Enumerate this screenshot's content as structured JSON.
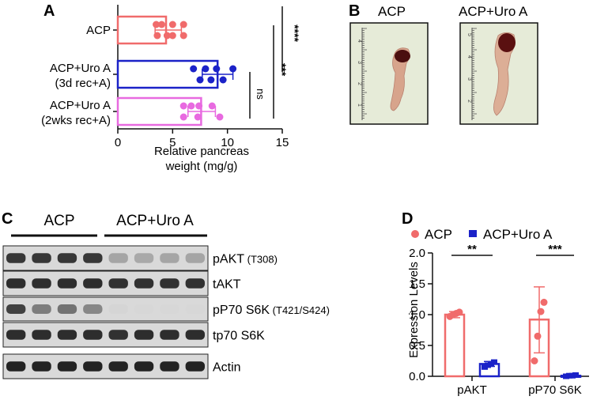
{
  "panels": {
    "A": {
      "letter": "A",
      "xlabel_line1": "Relative pancreas",
      "xlabel_line2": "weight (mg/g)",
      "xticks": [
        "0",
        "5",
        "10",
        "15"
      ],
      "groups": [
        {
          "label_line1": "ACP",
          "label_line2": "",
          "color": "#f06b6b"
        },
        {
          "label_line1": "ACP+Uro A",
          "label_line2": "(3d rec+A)",
          "color": "#1b22c8"
        },
        {
          "label_line1": "ACP+Uro A",
          "label_line2": "(2wks rec+A)",
          "color": "#e86ae0"
        }
      ],
      "sig": {
        "ns": "ns",
        "four": "****",
        "three": "***"
      }
    },
    "B": {
      "letter": "B",
      "left_label": "ACP",
      "right_label": "ACP+Uro A"
    },
    "C": {
      "letter": "C",
      "group1": "ACP",
      "group2": "ACP+Uro A",
      "bands": [
        {
          "name": "pAKT",
          "site": "(T308)"
        },
        {
          "name": "tAKT",
          "site": ""
        },
        {
          "name": "pP70 S6K",
          "site": "(T421/S424)"
        },
        {
          "name": "tp70 S6K",
          "site": ""
        },
        {
          "name": "Actin",
          "site": ""
        }
      ]
    },
    "D": {
      "letter": "D",
      "ylabel": "Expression Levels",
      "yticks": [
        "0.0",
        "0.5",
        "1.0",
        "1.5",
        "2.0"
      ],
      "categories": [
        "pAKT",
        "pP70 S6K"
      ],
      "legend": [
        {
          "label": "ACP",
          "color": "#f06b6b"
        },
        {
          "label": "ACP+Uro A",
          "color": "#1b22c8"
        }
      ],
      "sig": [
        "**",
        "***"
      ]
    }
  },
  "chart_data": [
    {
      "type": "bar",
      "orientation": "horizontal",
      "categories": [
        "ACP",
        "ACP+Uro A (3d rec+A)",
        "ACP+Uro A (2wks rec+A)"
      ],
      "values": [
        4.4,
        9.1,
        7.6
      ],
      "error": [
        [
          3.4,
          5.8
        ],
        [
          7.7,
          10.5
        ],
        [
          6.4,
          8.9
        ]
      ],
      "points": [
        [
          3.5,
          4.0,
          5.0,
          6.0,
          3.6,
          4.5,
          5.0,
          6.0
        ],
        [
          6.9,
          8.0,
          9.0,
          10.5,
          9.6,
          7.5,
          8.5
        ],
        [
          6.0,
          6.7,
          7.4,
          8.6,
          6.0,
          7.3,
          9.3
        ]
      ],
      "xlabel": "Relative pancreas weight (mg/g)",
      "xlim": [
        0,
        15
      ],
      "annotations": [
        "ns",
        "****",
        "***"
      ]
    },
    {
      "type": "bar",
      "categories": [
        "pAKT",
        "pP70 S6K"
      ],
      "series": [
        {
          "name": "ACP",
          "values": [
            1.0,
            0.92
          ],
          "error": [
            [
              0.95,
              1.05
            ],
            [
              0.38,
              1.45
            ]
          ],
          "points": [
            [
              0.97,
              1.0,
              1.02,
              1.04
            ],
            [
              0.25,
              0.65,
              1.05,
              1.2
            ]
          ]
        },
        {
          "name": "ACP+Uro A",
          "values": [
            0.2,
            0.01
          ],
          "error": [
            [
              0.16,
              0.24
            ],
            [
              0.0,
              0.02
            ]
          ],
          "points": [
            [
              0.15,
              0.18,
              0.2,
              0.23
            ],
            [
              0.0,
              0.01,
              0.01,
              0.02
            ]
          ]
        }
      ],
      "ylabel": "Expression Levels",
      "ylim": [
        0,
        2
      ],
      "annotations": [
        "**",
        "***"
      ]
    }
  ]
}
